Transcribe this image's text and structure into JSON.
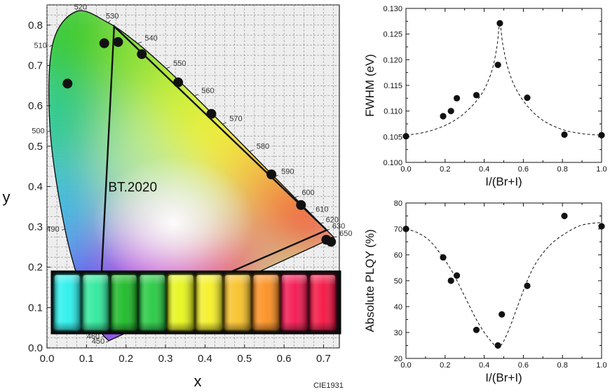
{
  "chart_data": [
    {
      "type": "scatter",
      "xlabel": "x",
      "ylabel": "y",
      "xlim": [
        0.0,
        0.74
      ],
      "ylim": [
        0.0,
        0.85
      ],
      "x_ticks": [
        0.0,
        0.1,
        0.2,
        0.3,
        0.4,
        0.5,
        0.6,
        0.7
      ],
      "y_ticks": [
        0.0,
        0.1,
        0.2,
        0.3,
        0.4,
        0.5,
        0.6,
        0.7,
        0.8
      ],
      "x_tick_labels": [
        "0.0",
        "0.1",
        "0.2",
        "0.3",
        "0.4",
        "0.5",
        "0.6",
        "0.7"
      ],
      "y_tick_labels": [
        "0.0",
        "0.1",
        "0.2",
        "0.3",
        "0.4",
        "0.5",
        "0.6",
        "0.7",
        "0.8"
      ],
      "grid": true,
      "footnote": "CIE1931",
      "gamut_label": "BT.2020",
      "gamut_triangle": [
        [
          0.708,
          0.292
        ],
        [
          0.17,
          0.797
        ],
        [
          0.131,
          0.046
        ]
      ],
      "locus": [
        {
          "nm": 450,
          "label": "450",
          "x": 0.1566,
          "y": 0.0177
        },
        {
          "nm": 460,
          "label": "460",
          "x": 0.144,
          "y": 0.0297
        },
        {
          "nm": 470,
          "label": "470",
          "x": 0.1241,
          "y": 0.0578
        },
        {
          "nm": 480,
          "label": "",
          "x": 0.0913,
          "y": 0.1327
        },
        {
          "nm": 490,
          "label": "490",
          "x": 0.0454,
          "y": 0.295
        },
        {
          "nm": 500,
          "label": "500",
          "x": 0.0082,
          "y": 0.5384
        },
        {
          "nm": 510,
          "label": "510",
          "x": 0.0139,
          "y": 0.7502
        },
        {
          "nm": 520,
          "label": "520",
          "x": 0.0743,
          "y": 0.8338
        },
        {
          "nm": 530,
          "label": "530",
          "x": 0.1547,
          "y": 0.8059
        },
        {
          "nm": 540,
          "label": "540",
          "x": 0.2296,
          "y": 0.7543
        },
        {
          "nm": 550,
          "label": "550",
          "x": 0.3016,
          "y": 0.6923
        },
        {
          "nm": 560,
          "label": "560",
          "x": 0.3731,
          "y": 0.6245
        },
        {
          "nm": 570,
          "label": "570",
          "x": 0.4441,
          "y": 0.5547
        },
        {
          "nm": 580,
          "label": "580",
          "x": 0.5125,
          "y": 0.4866
        },
        {
          "nm": 590,
          "label": "590",
          "x": 0.5752,
          "y": 0.4242
        },
        {
          "nm": 600,
          "label": "600",
          "x": 0.627,
          "y": 0.3725
        },
        {
          "nm": 610,
          "label": "610",
          "x": 0.6658,
          "y": 0.334
        },
        {
          "nm": 620,
          "label": "620",
          "x": 0.6915,
          "y": 0.3083
        },
        {
          "nm": 630,
          "label": "630",
          "x": 0.7079,
          "y": 0.292
        },
        {
          "nm": 650,
          "label": "650",
          "x": 0.726,
          "y": 0.274
        }
      ],
      "points": [
        {
          "x": 0.052,
          "y": 0.655
        },
        {
          "x": 0.145,
          "y": 0.755
        },
        {
          "x": 0.18,
          "y": 0.758
        },
        {
          "x": 0.24,
          "y": 0.728
        },
        {
          "x": 0.332,
          "y": 0.658
        },
        {
          "x": 0.416,
          "y": 0.58
        },
        {
          "x": 0.568,
          "y": 0.43
        },
        {
          "x": 0.643,
          "y": 0.354
        },
        {
          "x": 0.707,
          "y": 0.268
        },
        {
          "x": 0.719,
          "y": 0.263
        }
      ],
      "vial_colors": [
        "#27f0ec",
        "#2be89a",
        "#18b822",
        "#22c940",
        "#e5f415",
        "#f4ef22",
        "#f8c024",
        "#fb8d1c",
        "#f3124e",
        "#f5103e"
      ]
    },
    {
      "type": "scatter",
      "xlabel": "I/(Br+I)",
      "ylabel": "FWHM (eV)",
      "xlim": [
        0.0,
        1.0
      ],
      "ylim": [
        0.1,
        0.13
      ],
      "x_ticks": [
        0.0,
        0.2,
        0.4,
        0.6,
        0.8,
        1.0
      ],
      "x_tick_labels": [
        "0.0",
        "0.2",
        "0.4",
        "0.6",
        "0.8",
        "1.0"
      ],
      "y_ticks": [
        0.1,
        0.105,
        0.11,
        0.115,
        0.12,
        0.125,
        0.13
      ],
      "y_tick_labels": [
        "0.100",
        "0.105",
        "0.110",
        "0.115",
        "0.120",
        "0.125",
        "0.130"
      ],
      "points": [
        {
          "x": 0.0,
          "y": 0.1051
        },
        {
          "x": 0.19,
          "y": 0.109
        },
        {
          "x": 0.23,
          "y": 0.11
        },
        {
          "x": 0.26,
          "y": 0.1125
        },
        {
          "x": 0.36,
          "y": 0.1131
        },
        {
          "x": 0.47,
          "y": 0.119
        },
        {
          "x": 0.48,
          "y": 0.1271
        },
        {
          "x": 0.62,
          "y": 0.1126
        },
        {
          "x": 0.81,
          "y": 0.1054
        },
        {
          "x": 1.0,
          "y": 0.1053
        }
      ],
      "fit": [
        {
          "x": 0.0,
          "y": 0.1053
        },
        {
          "x": 0.1,
          "y": 0.1059
        },
        {
          "x": 0.2,
          "y": 0.1072
        },
        {
          "x": 0.28,
          "y": 0.109
        },
        {
          "x": 0.35,
          "y": 0.1115
        },
        {
          "x": 0.4,
          "y": 0.1142
        },
        {
          "x": 0.44,
          "y": 0.118
        },
        {
          "x": 0.465,
          "y": 0.1225
        },
        {
          "x": 0.48,
          "y": 0.127
        },
        {
          "x": 0.495,
          "y": 0.123
        },
        {
          "x": 0.52,
          "y": 0.1185
        },
        {
          "x": 0.56,
          "y": 0.1145
        },
        {
          "x": 0.62,
          "y": 0.111
        },
        {
          "x": 0.7,
          "y": 0.1082
        },
        {
          "x": 0.8,
          "y": 0.1064
        },
        {
          "x": 0.9,
          "y": 0.1056
        },
        {
          "x": 1.0,
          "y": 0.1053
        }
      ]
    },
    {
      "type": "scatter",
      "xlabel": "I/(Br+I)",
      "ylabel": "Absolute PLQY (%)",
      "xlim": [
        0.0,
        1.0
      ],
      "ylim": [
        20,
        80
      ],
      "x_ticks": [
        0.0,
        0.2,
        0.4,
        0.6,
        0.8,
        1.0
      ],
      "x_tick_labels": [
        "0.0",
        "0.2",
        "0.4",
        "0.6",
        "0.8",
        "1.0"
      ],
      "y_ticks": [
        20,
        30,
        40,
        50,
        60,
        70,
        80
      ],
      "y_tick_labels": [
        "20",
        "30",
        "40",
        "50",
        "60",
        "70",
        "80"
      ],
      "points": [
        {
          "x": 0.0,
          "y": 70
        },
        {
          "x": 0.19,
          "y": 59
        },
        {
          "x": 0.23,
          "y": 50
        },
        {
          "x": 0.26,
          "y": 52
        },
        {
          "x": 0.36,
          "y": 31
        },
        {
          "x": 0.47,
          "y": 25
        },
        {
          "x": 0.49,
          "y": 37
        },
        {
          "x": 0.62,
          "y": 48
        },
        {
          "x": 0.81,
          "y": 75
        },
        {
          "x": 1.0,
          "y": 71
        }
      ],
      "fit": [
        {
          "x": 0.0,
          "y": 70
        },
        {
          "x": 0.06,
          "y": 68.5
        },
        {
          "x": 0.12,
          "y": 65.5
        },
        {
          "x": 0.18,
          "y": 60
        },
        {
          "x": 0.24,
          "y": 53
        },
        {
          "x": 0.3,
          "y": 44
        },
        {
          "x": 0.36,
          "y": 35
        },
        {
          "x": 0.42,
          "y": 28
        },
        {
          "x": 0.475,
          "y": 24.5
        },
        {
          "x": 0.52,
          "y": 30
        },
        {
          "x": 0.57,
          "y": 40
        },
        {
          "x": 0.62,
          "y": 50
        },
        {
          "x": 0.67,
          "y": 57.5
        },
        {
          "x": 0.74,
          "y": 64
        },
        {
          "x": 0.82,
          "y": 68.5
        },
        {
          "x": 0.9,
          "y": 71.5
        },
        {
          "x": 1.0,
          "y": 72.5
        }
      ]
    }
  ]
}
